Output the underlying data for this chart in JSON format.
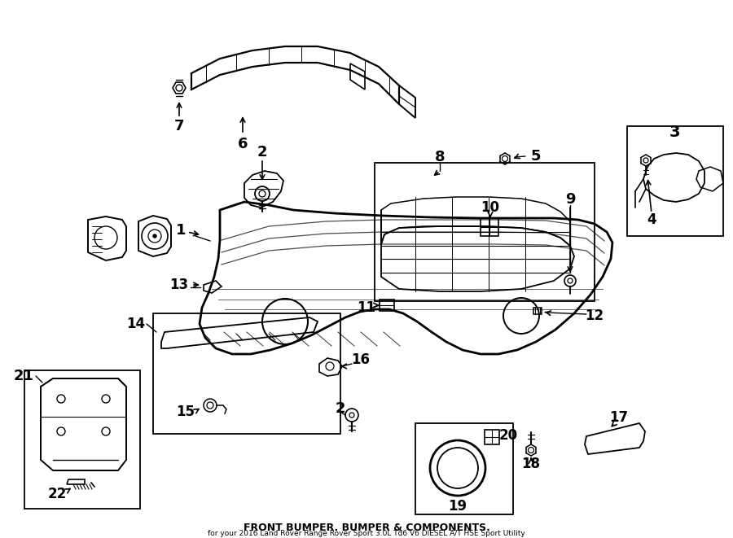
{
  "title": "FRONT BUMPER. BUMPER & COMPONENTS.",
  "subtitle": "for your 2016 Land Rover Range Rover Sport 3.0L Td6 V6 DIESEL A/T HSE Sport Utility",
  "background_color": "#ffffff",
  "line_color": "#000000",
  "text_color": "#000000",
  "fig_width": 9.0,
  "fig_height": 6.61,
  "dpi": 100
}
